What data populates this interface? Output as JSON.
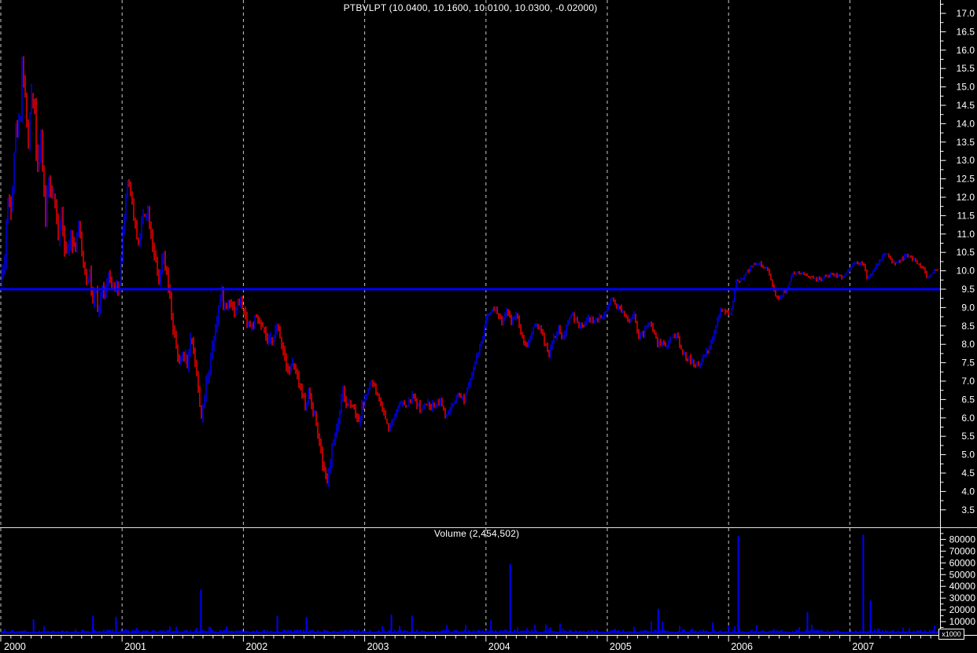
{
  "app": {
    "kind": "stock-charting-window",
    "background": "#000000"
  },
  "axis": {
    "tick_color": "#ffffff",
    "label_color": "#ffffff",
    "grid_color": "#c9c9c9",
    "pane_divider_color": "#e0e0e0"
  },
  "chart_data": [
    {
      "type": "line",
      "style": "daily-ohlc-bars",
      "title": "PTBVLPT (10.0400, 10.1600, 10.0100, 10.0300, -0.02000)",
      "symbol": "PTBVLPT",
      "quote": {
        "open": "10.0400",
        "high": "10.1600",
        "low": "10.0100",
        "close": "10.0300",
        "change": "-0.02000"
      },
      "up_color": "#0000ff",
      "down_color": "#ff0000",
      "horizontal_line": {
        "price": 9.5,
        "color": "#0000ff"
      },
      "grid": "vertical-dashed-at-year-start",
      "legend": "none",
      "x_years": [
        2000,
        2001,
        2002,
        2003,
        2004,
        2005,
        2006,
        2007
      ],
      "ylim": [
        3.25,
        17.3
      ],
      "yticks": [
        3.5,
        4.0,
        4.5,
        5.0,
        5.5,
        6.0,
        6.5,
        7.0,
        7.5,
        8.0,
        8.5,
        9.0,
        9.5,
        10.0,
        10.5,
        11.0,
        11.5,
        12.0,
        12.5,
        13.0,
        13.5,
        14.0,
        14.5,
        15.0,
        15.5,
        16.0,
        16.5,
        17.0
      ],
      "close_points": [
        [
          2000.0,
          9.8
        ],
        [
          2000.03,
          10.2
        ],
        [
          2000.05,
          11.7
        ],
        [
          2000.07,
          11.9
        ],
        [
          2000.09,
          11.8
        ],
        [
          2000.11,
          13.3
        ],
        [
          2000.12,
          13.7
        ],
        [
          2000.16,
          14.2
        ],
        [
          2000.18,
          16.2
        ],
        [
          2000.19,
          15.1
        ],
        [
          2000.21,
          14.2
        ],
        [
          2000.23,
          13.3
        ],
        [
          2000.25,
          14.9
        ],
        [
          2000.28,
          14.5
        ],
        [
          2000.3,
          12.7
        ],
        [
          2000.33,
          13.5
        ],
        [
          2000.37,
          11.5
        ],
        [
          2000.4,
          12.6
        ],
        [
          2000.42,
          11.8
        ],
        [
          2000.43,
          12.2
        ],
        [
          2000.47,
          11.0
        ],
        [
          2000.5,
          11.6
        ],
        [
          2000.54,
          10.3
        ],
        [
          2000.58,
          11.2
        ],
        [
          2000.61,
          10.5
        ],
        [
          2000.64,
          11.3
        ],
        [
          2000.67,
          10.4
        ],
        [
          2000.71,
          9.7
        ],
        [
          2000.73,
          10.1
        ],
        [
          2000.76,
          9.0
        ],
        [
          2000.78,
          9.5
        ],
        [
          2000.8,
          8.8
        ],
        [
          2000.84,
          9.6
        ],
        [
          2000.86,
          9.3
        ],
        [
          2000.89,
          9.9
        ],
        [
          2000.91,
          9.4
        ],
        [
          2000.94,
          9.7
        ],
        [
          2000.97,
          9.3
        ],
        [
          2001.0,
          10.8
        ],
        [
          2001.03,
          12.0
        ],
        [
          2001.05,
          12.6
        ],
        [
          2001.08,
          11.9
        ],
        [
          2001.11,
          11.1
        ],
        [
          2001.14,
          10.8
        ],
        [
          2001.17,
          11.5
        ],
        [
          2001.21,
          11.7
        ],
        [
          2001.24,
          11.0
        ],
        [
          2001.27,
          10.4
        ],
        [
          2001.3,
          9.6
        ],
        [
          2001.34,
          10.4
        ],
        [
          2001.37,
          9.8
        ],
        [
          2001.4,
          9.0
        ],
        [
          2001.43,
          8.2
        ],
        [
          2001.47,
          7.4
        ],
        [
          2001.5,
          7.8
        ],
        [
          2001.54,
          7.5
        ],
        [
          2001.57,
          8.3
        ],
        [
          2001.6,
          7.6
        ],
        [
          2001.63,
          6.7
        ],
        [
          2001.66,
          5.9
        ],
        [
          2001.69,
          6.9
        ],
        [
          2001.73,
          7.6
        ],
        [
          2001.76,
          8.3
        ],
        [
          2001.79,
          8.9
        ],
        [
          2001.82,
          9.4
        ],
        [
          2001.85,
          9.0
        ],
        [
          2001.89,
          9.3
        ],
        [
          2001.92,
          8.9
        ],
        [
          2001.95,
          9.1
        ],
        [
          2001.98,
          9.15
        ],
        [
          2002.02,
          8.7
        ],
        [
          2002.06,
          8.45
        ],
        [
          2002.09,
          8.65
        ],
        [
          2002.13,
          8.6
        ],
        [
          2002.17,
          8.3
        ],
        [
          2002.21,
          8.0
        ],
        [
          2002.25,
          8.3
        ],
        [
          2002.28,
          8.45
        ],
        [
          2002.32,
          8.0
        ],
        [
          2002.35,
          7.55
        ],
        [
          2002.38,
          7.3
        ],
        [
          2002.41,
          7.5
        ],
        [
          2002.44,
          7.1
        ],
        [
          2002.48,
          6.7
        ],
        [
          2002.51,
          6.3
        ],
        [
          2002.54,
          6.7
        ],
        [
          2002.57,
          6.3
        ],
        [
          2002.61,
          5.7
        ],
        [
          2002.64,
          5.0
        ],
        [
          2002.67,
          4.4
        ],
        [
          2002.7,
          4.3
        ],
        [
          2002.72,
          5.0
        ],
        [
          2002.76,
          5.6
        ],
        [
          2002.79,
          6.1
        ],
        [
          2002.82,
          6.7
        ],
        [
          2002.85,
          6.3
        ],
        [
          2002.89,
          6.5
        ],
        [
          2002.92,
          6.2
        ],
        [
          2002.95,
          5.9
        ],
        [
          2002.98,
          6.3
        ],
        [
          2003.02,
          6.7
        ],
        [
          2003.05,
          7.0
        ],
        [
          2003.08,
          6.8
        ],
        [
          2003.12,
          6.5
        ],
        [
          2003.16,
          6.1
        ],
        [
          2003.2,
          5.7
        ],
        [
          2003.24,
          6.0
        ],
        [
          2003.27,
          6.3
        ],
        [
          2003.31,
          6.4
        ],
        [
          2003.35,
          6.3
        ],
        [
          2003.39,
          6.6
        ],
        [
          2003.43,
          6.4
        ],
        [
          2003.47,
          6.2
        ],
        [
          2003.51,
          6.4
        ],
        [
          2003.55,
          6.3
        ],
        [
          2003.59,
          6.4
        ],
        [
          2003.63,
          6.5
        ],
        [
          2003.66,
          6.0
        ],
        [
          2003.7,
          6.2
        ],
        [
          2003.74,
          6.4
        ],
        [
          2003.78,
          6.6
        ],
        [
          2003.82,
          6.5
        ],
        [
          2003.86,
          7.0
        ],
        [
          2003.9,
          7.4
        ],
        [
          2003.94,
          7.8
        ],
        [
          2003.98,
          8.3
        ],
        [
          2004.01,
          8.8
        ],
        [
          2004.05,
          9.0
        ],
        [
          2004.09,
          8.9
        ],
        [
          2004.13,
          8.6
        ],
        [
          2004.17,
          8.9
        ],
        [
          2004.21,
          8.6
        ],
        [
          2004.25,
          8.85
        ],
        [
          2004.29,
          8.3
        ],
        [
          2004.33,
          7.95
        ],
        [
          2004.36,
          8.15
        ],
        [
          2004.4,
          8.55
        ],
        [
          2004.44,
          8.45
        ],
        [
          2004.48,
          8.1
        ],
        [
          2004.52,
          7.75
        ],
        [
          2004.56,
          8.2
        ],
        [
          2004.6,
          8.4
        ],
        [
          2004.64,
          8.1
        ],
        [
          2004.68,
          8.7
        ],
        [
          2004.71,
          8.85
        ],
        [
          2004.75,
          8.55
        ],
        [
          2004.79,
          8.45
        ],
        [
          2004.83,
          8.65
        ],
        [
          2004.87,
          8.7
        ],
        [
          2004.91,
          8.65
        ],
        [
          2004.95,
          8.75
        ],
        [
          2004.99,
          8.9
        ],
        [
          2005.03,
          9.3
        ],
        [
          2005.06,
          9.1
        ],
        [
          2005.1,
          9.0
        ],
        [
          2005.14,
          8.8
        ],
        [
          2005.18,
          8.65
        ],
        [
          2005.22,
          8.85
        ],
        [
          2005.26,
          8.2
        ],
        [
          2005.3,
          8.3
        ],
        [
          2005.34,
          8.6
        ],
        [
          2005.38,
          8.4
        ],
        [
          2005.41,
          8.0
        ],
        [
          2005.45,
          8.05
        ],
        [
          2005.49,
          7.95
        ],
        [
          2005.53,
          8.2
        ],
        [
          2005.57,
          8.3
        ],
        [
          2005.61,
          7.85
        ],
        [
          2005.65,
          7.65
        ],
        [
          2005.69,
          7.55
        ],
        [
          2005.73,
          7.4
        ],
        [
          2005.77,
          7.5
        ],
        [
          2005.8,
          7.7
        ],
        [
          2005.84,
          7.85
        ],
        [
          2005.88,
          8.3
        ],
        [
          2005.92,
          8.8
        ],
        [
          2005.95,
          9.0
        ],
        [
          2005.99,
          8.8
        ],
        [
          2006.02,
          8.85
        ],
        [
          2006.06,
          9.7
        ],
        [
          2006.1,
          9.75
        ],
        [
          2006.14,
          9.9
        ],
        [
          2006.18,
          10.1
        ],
        [
          2006.22,
          10.2
        ],
        [
          2006.26,
          10.18
        ],
        [
          2006.3,
          10.1
        ],
        [
          2006.34,
          9.9
        ],
        [
          2006.37,
          9.5
        ],
        [
          2006.41,
          9.2
        ],
        [
          2006.45,
          9.4
        ],
        [
          2006.49,
          9.6
        ],
        [
          2006.53,
          9.9
        ],
        [
          2006.57,
          9.9
        ],
        [
          2006.61,
          9.9
        ],
        [
          2006.65,
          9.87
        ],
        [
          2006.69,
          9.85
        ],
        [
          2006.72,
          9.75
        ],
        [
          2006.76,
          9.8
        ],
        [
          2006.8,
          9.85
        ],
        [
          2006.84,
          9.88
        ],
        [
          2006.88,
          9.88
        ],
        [
          2006.92,
          9.82
        ],
        [
          2006.96,
          9.88
        ],
        [
          2007.0,
          10.1
        ],
        [
          2007.04,
          10.2
        ],
        [
          2007.08,
          10.22
        ],
        [
          2007.11,
          10.15
        ],
        [
          2007.14,
          9.8
        ],
        [
          2007.18,
          9.95
        ],
        [
          2007.22,
          10.15
        ],
        [
          2007.26,
          10.35
        ],
        [
          2007.3,
          10.48
        ],
        [
          2007.33,
          10.33
        ],
        [
          2007.37,
          10.15
        ],
        [
          2007.41,
          10.28
        ],
        [
          2007.45,
          10.38
        ],
        [
          2007.49,
          10.4
        ],
        [
          2007.53,
          10.3
        ],
        [
          2007.57,
          10.18
        ],
        [
          2007.61,
          10.0
        ],
        [
          2007.64,
          9.8
        ],
        [
          2007.68,
          9.95
        ],
        [
          2007.72,
          10.05
        ]
      ]
    },
    {
      "type": "bar",
      "title": "Volume (2,454,502)",
      "current_volume": "2,454,502",
      "color": "#0000ff",
      "unit_multiplier_label": "x1000",
      "ylim": [
        0,
        85000
      ],
      "yticks": [
        10000,
        20000,
        30000,
        40000,
        50000,
        60000,
        70000,
        80000
      ],
      "baseline_noise_range": [
        500,
        12000
      ],
      "volume_spikes": [
        [
          2000.27,
          12000
        ],
        [
          2000.76,
          15000
        ],
        [
          2000.95,
          14000
        ],
        [
          2001.65,
          37000
        ],
        [
          2002.28,
          15000
        ],
        [
          2002.52,
          14000
        ],
        [
          2003.22,
          16000
        ],
        [
          2003.39,
          15000
        ],
        [
          2004.2,
          59000
        ],
        [
          2005.42,
          21000
        ],
        [
          2006.08,
          83000
        ],
        [
          2006.65,
          18000
        ],
        [
          2007.11,
          84000
        ],
        [
          2007.17,
          28000
        ]
      ]
    }
  ]
}
